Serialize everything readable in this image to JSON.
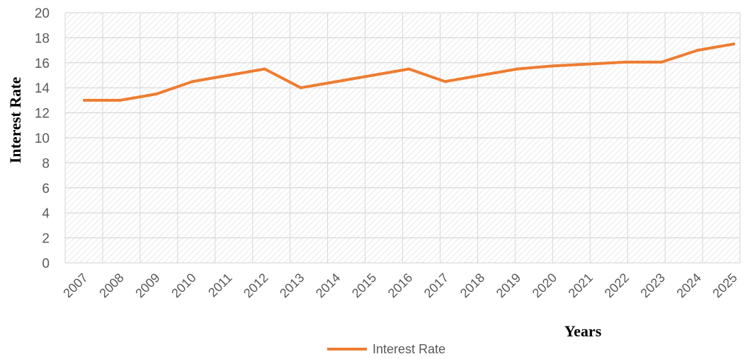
{
  "chart_data": {
    "type": "line",
    "x": [
      "2007",
      "2008",
      "2009",
      "2010",
      "2011",
      "2012",
      "2013",
      "2014",
      "2015",
      "2016",
      "2017",
      "2018",
      "2019",
      "2020",
      "2021",
      "2022",
      "2023",
      "2024",
      "2025"
    ],
    "series": [
      {
        "name": "Interest Rate",
        "color": "#ED7D31",
        "values": [
          13,
          13,
          13.5,
          14.5,
          15,
          15.5,
          14,
          14.5,
          15,
          15.5,
          14.5,
          15,
          15.5,
          15.75,
          15.9,
          16.05,
          16.05,
          17,
          17.5
        ]
      }
    ],
    "xlabel": "Years",
    "ylabel": "Interest  Rate",
    "ylim": [
      0,
      20
    ],
    "yticks": [
      "0",
      "2",
      "4",
      "6",
      "8",
      "10",
      "12",
      "14",
      "16",
      "18",
      "20"
    ],
    "grid": true,
    "legend": "bottom"
  }
}
